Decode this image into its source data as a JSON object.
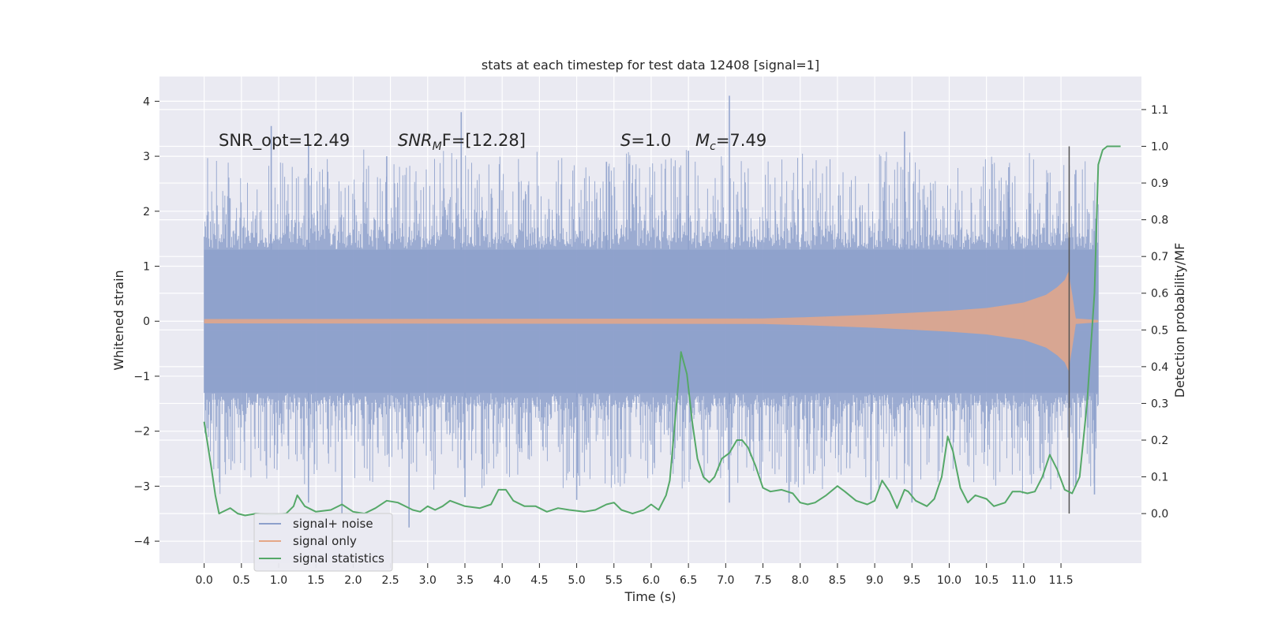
{
  "chart_data": {
    "type": "line",
    "title": "stats at each timestep for test data 12408 [signal=1]",
    "xlabel": "Time (s)",
    "ylabel_left": "Whitened strain",
    "ylabel_right": "Detection probability/MF",
    "xlim": [
      -0.6,
      12.58
    ],
    "ylim_left": [
      -4.4,
      4.45
    ],
    "ylim_right": [
      -0.135,
      1.19
    ],
    "x_ticks": [
      "0.0",
      "0.5",
      "1.0",
      "1.5",
      "2.0",
      "2.5",
      "3.0",
      "3.5",
      "4.0",
      "4.5",
      "5.0",
      "5.5",
      "6.0",
      "6.5",
      "7.0",
      "7.5",
      "8.0",
      "8.5",
      "9.0",
      "9.5",
      "10.0",
      "10.5",
      "11.0",
      "11.5"
    ],
    "y_ticks_left": [
      "4",
      "3",
      "2",
      "1",
      "0",
      "−1",
      "−2",
      "−3",
      "−4"
    ],
    "y_ticks_right": [
      "1.1",
      "1.0",
      "0.9",
      "0.8",
      "0.7",
      "0.6",
      "0.5",
      "0.4",
      "0.3",
      "0.2",
      "0.1",
      "0.0"
    ],
    "grid": true,
    "legend_position": "lower-left",
    "annotations": {
      "snr_opt": "SNR_opt=12.49",
      "snr_mf_label": "SNR",
      "snr_mf_sub": "M",
      "snr_mf_suffix": "F=[12.28]",
      "s_label": "S",
      "s_value": "=1.0",
      "mc_label": "M",
      "mc_sub": "c",
      "mc_value": "=7.49"
    },
    "series": [
      {
        "name": "signal+ noise",
        "color": "#8da0cb",
        "axis": "left",
        "t_range": [
          0.0,
          12.0
        ],
        "envelope_abs": 1.3,
        "peaks_positive": [
          [
            0.9,
            3.55
          ],
          [
            1.4,
            3.2
          ],
          [
            2.45,
            3.0
          ],
          [
            3.45,
            3.8
          ],
          [
            5.4,
            2.9
          ],
          [
            6.5,
            3.1
          ],
          [
            7.05,
            4.1
          ],
          [
            9.4,
            3.45
          ],
          [
            10.8,
            2.8
          ],
          [
            11.7,
            2.75
          ]
        ],
        "peaks_negative": [
          [
            1.4,
            -3.3
          ],
          [
            1.85,
            -3.5
          ],
          [
            2.75,
            -3.75
          ],
          [
            3.5,
            -3.2
          ],
          [
            5.0,
            -3.25
          ],
          [
            7.05,
            -3.3
          ],
          [
            7.85,
            -3.3
          ],
          [
            8.95,
            -3.25
          ],
          [
            9.5,
            -3.3
          ],
          [
            11.95,
            -3.15
          ]
        ]
      },
      {
        "name": "signal only",
        "color": "#e5a787",
        "axis": "left",
        "envelope": [
          [
            0.0,
            0.04
          ],
          [
            7.5,
            0.05
          ],
          [
            8.0,
            0.07
          ],
          [
            9.0,
            0.12
          ],
          [
            10.0,
            0.19
          ],
          [
            10.5,
            0.24
          ],
          [
            11.0,
            0.34
          ],
          [
            11.3,
            0.48
          ],
          [
            11.45,
            0.62
          ],
          [
            11.55,
            0.75
          ],
          [
            11.6,
            0.9
          ],
          [
            11.65,
            0.5
          ],
          [
            11.7,
            0.05
          ],
          [
            12.0,
            0.02
          ]
        ]
      },
      {
        "name": "signal statistics",
        "color": "#55a868",
        "axis": "right",
        "points": [
          [
            0.0,
            0.25
          ],
          [
            0.1,
            0.12
          ],
          [
            0.15,
            0.05
          ],
          [
            0.2,
            0.0
          ],
          [
            0.3,
            0.01
          ],
          [
            0.35,
            0.015
          ],
          [
            0.45,
            0.0
          ],
          [
            0.55,
            -0.005
          ],
          [
            0.7,
            0.0
          ],
          [
            0.9,
            -0.003
          ],
          [
            1.1,
            0.0
          ],
          [
            1.2,
            0.02
          ],
          [
            1.25,
            0.05
          ],
          [
            1.35,
            0.02
          ],
          [
            1.5,
            0.005
          ],
          [
            1.7,
            0.01
          ],
          [
            1.85,
            0.025
          ],
          [
            2.0,
            0.005
          ],
          [
            2.15,
            0.0
          ],
          [
            2.3,
            0.015
          ],
          [
            2.45,
            0.035
          ],
          [
            2.6,
            0.03
          ],
          [
            2.8,
            0.01
          ],
          [
            2.9,
            0.005
          ],
          [
            3.0,
            0.02
          ],
          [
            3.1,
            0.01
          ],
          [
            3.2,
            0.02
          ],
          [
            3.3,
            0.035
          ],
          [
            3.5,
            0.02
          ],
          [
            3.7,
            0.015
          ],
          [
            3.85,
            0.025
          ],
          [
            3.95,
            0.065
          ],
          [
            4.05,
            0.065
          ],
          [
            4.15,
            0.035
          ],
          [
            4.3,
            0.02
          ],
          [
            4.45,
            0.02
          ],
          [
            4.6,
            0.005
          ],
          [
            4.75,
            0.015
          ],
          [
            4.9,
            0.01
          ],
          [
            5.1,
            0.005
          ],
          [
            5.25,
            0.01
          ],
          [
            5.4,
            0.025
          ],
          [
            5.5,
            0.03
          ],
          [
            5.6,
            0.01
          ],
          [
            5.75,
            0.0
          ],
          [
            5.9,
            0.01
          ],
          [
            6.0,
            0.025
          ],
          [
            6.1,
            0.01
          ],
          [
            6.2,
            0.05
          ],
          [
            6.25,
            0.09
          ],
          [
            6.32,
            0.25
          ],
          [
            6.4,
            0.44
          ],
          [
            6.48,
            0.38
          ],
          [
            6.55,
            0.25
          ],
          [
            6.62,
            0.15
          ],
          [
            6.7,
            0.1
          ],
          [
            6.78,
            0.085
          ],
          [
            6.85,
            0.1
          ],
          [
            6.95,
            0.15
          ],
          [
            7.05,
            0.165
          ],
          [
            7.15,
            0.2
          ],
          [
            7.22,
            0.2
          ],
          [
            7.3,
            0.18
          ],
          [
            7.4,
            0.13
          ],
          [
            7.5,
            0.07
          ],
          [
            7.6,
            0.06
          ],
          [
            7.75,
            0.065
          ],
          [
            7.9,
            0.055
          ],
          [
            8.0,
            0.03
          ],
          [
            8.1,
            0.025
          ],
          [
            8.2,
            0.03
          ],
          [
            8.35,
            0.05
          ],
          [
            8.5,
            0.075
          ],
          [
            8.6,
            0.06
          ],
          [
            8.75,
            0.035
          ],
          [
            8.9,
            0.025
          ],
          [
            9.0,
            0.035
          ],
          [
            9.1,
            0.09
          ],
          [
            9.2,
            0.06
          ],
          [
            9.3,
            0.015
          ],
          [
            9.4,
            0.065
          ],
          [
            9.45,
            0.06
          ],
          [
            9.55,
            0.035
          ],
          [
            9.7,
            0.02
          ],
          [
            9.8,
            0.04
          ],
          [
            9.9,
            0.1
          ],
          [
            9.98,
            0.21
          ],
          [
            10.05,
            0.17
          ],
          [
            10.15,
            0.07
          ],
          [
            10.25,
            0.03
          ],
          [
            10.35,
            0.05
          ],
          [
            10.5,
            0.04
          ],
          [
            10.6,
            0.02
          ],
          [
            10.75,
            0.03
          ],
          [
            10.85,
            0.06
          ],
          [
            10.95,
            0.06
          ],
          [
            11.05,
            0.055
          ],
          [
            11.15,
            0.06
          ],
          [
            11.25,
            0.1
          ],
          [
            11.35,
            0.16
          ],
          [
            11.45,
            0.12
          ],
          [
            11.55,
            0.065
          ],
          [
            11.65,
            0.055
          ],
          [
            11.75,
            0.1
          ],
          [
            11.85,
            0.3
          ],
          [
            11.95,
            0.6
          ],
          [
            12.0,
            0.95
          ],
          [
            12.06,
            0.99
          ],
          [
            12.12,
            1.0
          ],
          [
            12.2,
            1.0
          ],
          [
            12.3,
            1.0
          ]
        ]
      },
      {
        "name": "merger marker",
        "color": "#555555",
        "axis": "right",
        "x": 11.61,
        "y_range": [
          0.0,
          1.0
        ]
      }
    ]
  }
}
